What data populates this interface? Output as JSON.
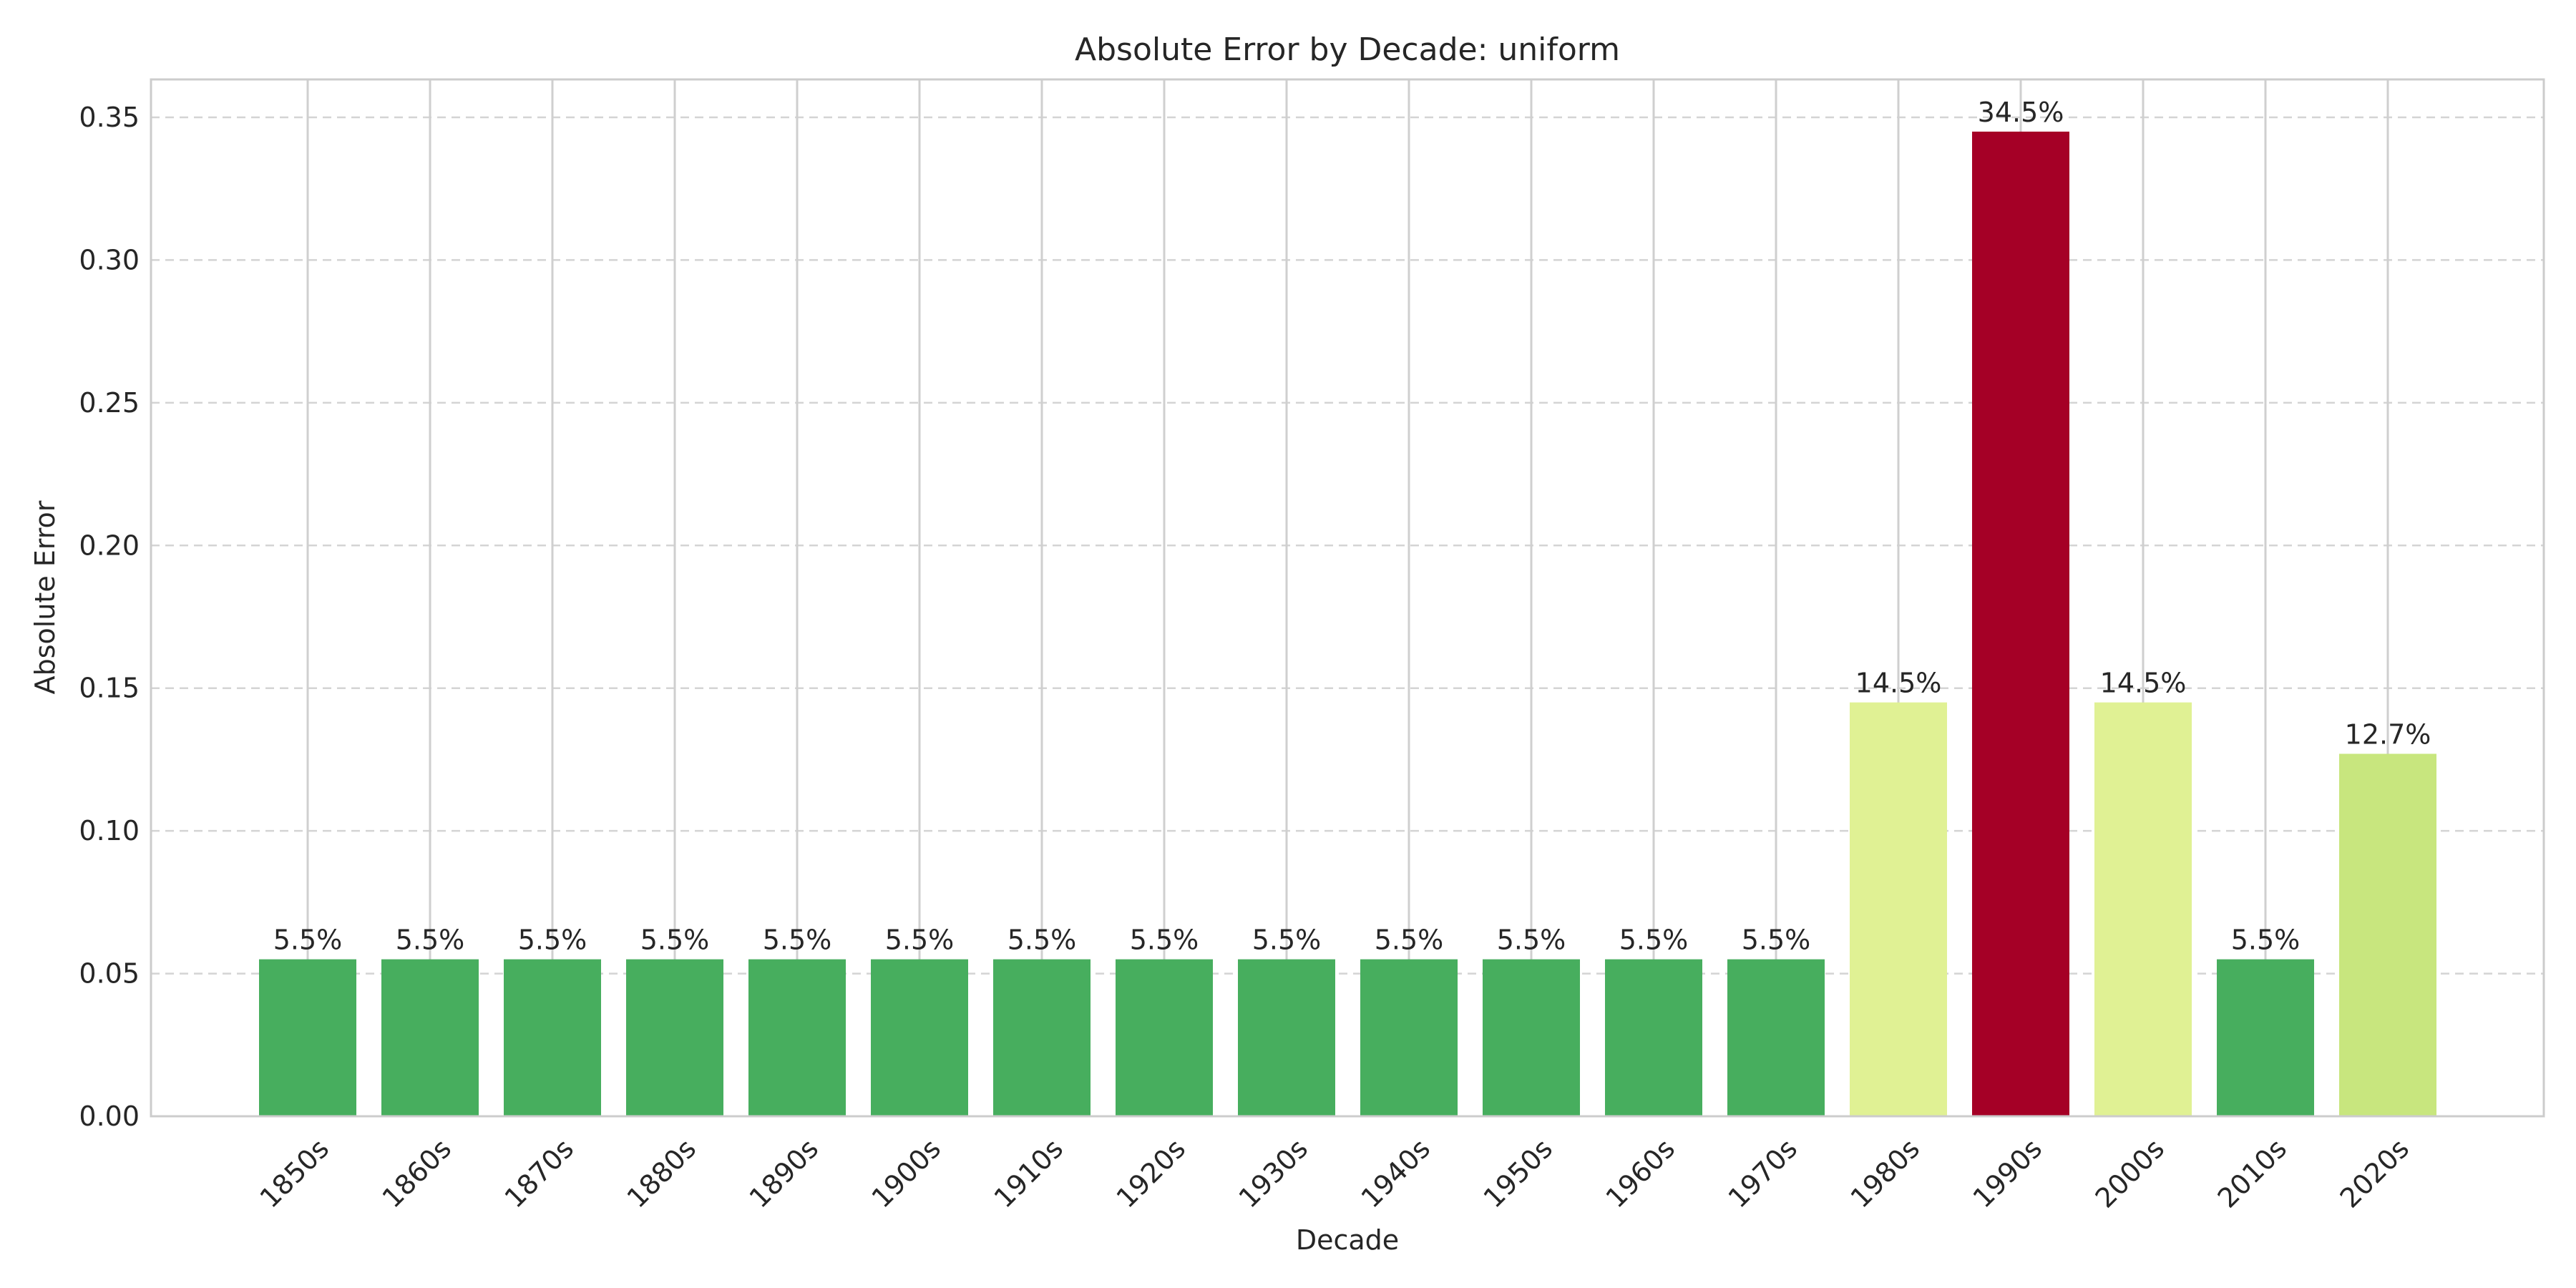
{
  "chart_data": {
    "type": "bar",
    "title": "Absolute Error by Decade: uniform",
    "xlabel": "Decade",
    "ylabel": "Absolute Error",
    "ylim": [
      0,
      0.3625
    ],
    "yticks": [
      0.0,
      0.05,
      0.1,
      0.15,
      0.2,
      0.25,
      0.3,
      0.35
    ],
    "ytick_labels": [
      "0.00",
      "0.05",
      "0.10",
      "0.15",
      "0.20",
      "0.25",
      "0.30",
      "0.35"
    ],
    "grid": {
      "x": true,
      "y": true,
      "y_style": "dashed"
    },
    "categories": [
      "1850s",
      "1860s",
      "1870s",
      "1880s",
      "1890s",
      "1900s",
      "1910s",
      "1920s",
      "1930s",
      "1940s",
      "1950s",
      "1960s",
      "1970s",
      "1980s",
      "1990s",
      "2000s",
      "2010s",
      "2020s"
    ],
    "values": [
      0.055,
      0.055,
      0.055,
      0.055,
      0.055,
      0.055,
      0.055,
      0.055,
      0.055,
      0.055,
      0.055,
      0.055,
      0.055,
      0.145,
      0.345,
      0.145,
      0.055,
      0.127
    ],
    "data_labels": [
      "5.5%",
      "5.5%",
      "5.5%",
      "5.5%",
      "5.5%",
      "5.5%",
      "5.5%",
      "5.5%",
      "5.5%",
      "5.5%",
      "5.5%",
      "5.5%",
      "5.5%",
      "14.5%",
      "34.5%",
      "14.5%",
      "5.5%",
      "12.7%"
    ],
    "colors": [
      "#47ae5e",
      "#47ae5e",
      "#47ae5e",
      "#47ae5e",
      "#47ae5e",
      "#47ae5e",
      "#47ae5e",
      "#47ae5e",
      "#47ae5e",
      "#47ae5e",
      "#47ae5e",
      "#47ae5e",
      "#47ae5e",
      "#e0f194",
      "#a50026",
      "#e0f194",
      "#47ae5e",
      "#c8e67e"
    ]
  }
}
